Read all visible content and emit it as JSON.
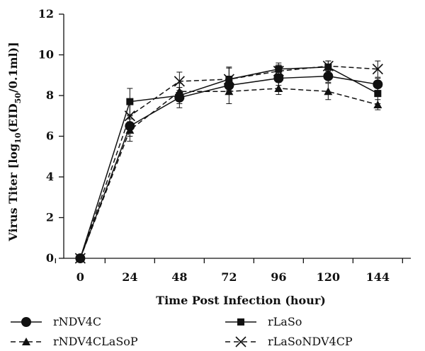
{
  "chart_data": {
    "type": "line",
    "title": "",
    "xlabel": "Time Post Infection (hour)",
    "ylabel_main": "Virus Titer [log",
    "ylabel_sub1": "10",
    "ylabel_mid": "(EID",
    "ylabel_sub2": "50",
    "ylabel_end": "/0.1ml)]",
    "x": [
      0,
      24,
      48,
      72,
      96,
      120,
      144
    ],
    "x_tick_labels": [
      "0",
      "24",
      "48",
      "72",
      "96",
      "120",
      "144"
    ],
    "y_ticks": [
      0,
      2,
      4,
      6,
      8,
      10,
      12
    ],
    "y_tick_labels": [
      "0",
      "2",
      "4",
      "6",
      "8",
      "10",
      "12"
    ],
    "xlim": [
      -8,
      160
    ],
    "ylim": [
      0,
      12
    ],
    "grid": false,
    "legend_position": "bottom",
    "series": [
      {
        "name": "rNDV4C",
        "marker": "circle",
        "dash": "solid",
        "values": [
          0,
          6.5,
          7.9,
          8.5,
          8.85,
          8.95,
          8.55
        ],
        "errors": [
          0,
          0.5,
          0.5,
          0.4,
          0.35,
          0.3,
          0.3
        ]
      },
      {
        "name": "rLaSo",
        "marker": "square",
        "dash": "solid",
        "values": [
          0,
          7.7,
          8.0,
          8.8,
          9.3,
          9.4,
          8.1
        ],
        "errors": [
          0,
          0.65,
          0.4,
          0.6,
          0.3,
          0.3,
          0.5
        ]
      },
      {
        "name": "rNDV4CLaSoP",
        "marker": "triangle",
        "dash": "dashed",
        "values": [
          0,
          6.3,
          8.2,
          8.2,
          8.35,
          8.2,
          7.55
        ],
        "errors": [
          0,
          0.55,
          0.4,
          0.6,
          0.3,
          0.4,
          0.25
        ]
      },
      {
        "name": "rLaSoNDV4CP",
        "marker": "x",
        "dash": "dashed",
        "values": [
          0,
          7.0,
          8.7,
          8.8,
          9.2,
          9.45,
          9.3
        ],
        "errors": [
          0,
          0.6,
          0.45,
          0.55,
          0.3,
          0.25,
          0.4
        ]
      }
    ]
  }
}
